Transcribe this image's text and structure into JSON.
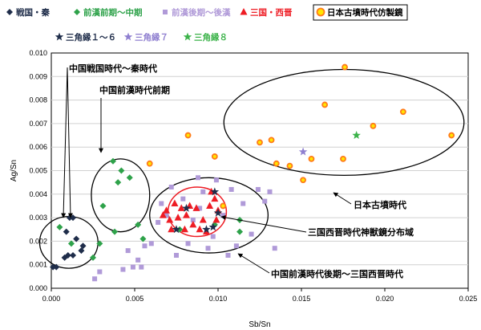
{
  "chart_data": {
    "type": "scatter",
    "xlabel": "Sb/Sn",
    "ylabel": "Ag/Sn",
    "xlim": [
      0,
      0.025
    ],
    "ylim": [
      0,
      0.01
    ],
    "x_ticks": [
      "0.000",
      "0.005",
      "0.010",
      "0.015",
      "0.020",
      "0.025"
    ],
    "y_ticks": [
      "0.000",
      "0.001",
      "0.002",
      "0.003",
      "0.004",
      "0.005",
      "0.006",
      "0.007",
      "0.008",
      "0.009",
      "0.010"
    ],
    "grid": "horizontal",
    "legend_position": "top",
    "series": [
      {
        "name": "戦国・秦",
        "marker": "diamond",
        "color": "#1f2d4a",
        "points": [
          [
            0.0001,
            0.0009
          ],
          [
            0.0003,
            0.0009
          ],
          [
            0.0008,
            0.0013
          ],
          [
            0.0009,
            0.0024
          ],
          [
            0.001,
            0.0014
          ],
          [
            0.0011,
            0.003
          ],
          [
            0.0013,
            0.003
          ],
          [
            0.0013,
            0.0014
          ],
          [
            0.0015,
            0.0021
          ],
          [
            0.0018,
            0.0016
          ],
          [
            0.0019,
            0.0018
          ]
        ]
      },
      {
        "name": "前漢前期～中期",
        "marker": "diamond",
        "color": "#2ea24a",
        "points": [
          [
            0.0005,
            0.0026
          ],
          [
            0.0012,
            0.0019
          ],
          [
            0.0025,
            0.0013
          ],
          [
            0.0029,
            0.0019
          ],
          [
            0.0031,
            0.0035
          ],
          [
            0.0037,
            0.0054
          ],
          [
            0.0038,
            0.0024
          ],
          [
            0.004,
            0.0045
          ],
          [
            0.0042,
            0.005
          ],
          [
            0.0047,
            0.0047
          ],
          [
            0.0052,
            0.0027
          ],
          [
            0.0055,
            0.0021
          ],
          [
            0.0077,
            0.0025
          ],
          [
            0.0098,
            0.0027
          ],
          [
            0.0113,
            0.0029
          ],
          [
            0.0113,
            0.0024
          ]
        ]
      },
      {
        "name": "前漢後期～後漢",
        "marker": "square",
        "color": "#b09ad8",
        "points": [
          [
            0.0026,
            0.0004
          ],
          [
            0.0029,
            0.0007
          ],
          [
            0.0043,
            0.0008
          ],
          [
            0.0046,
            0.0016
          ],
          [
            0.0049,
            0.0009
          ],
          [
            0.0052,
            0.0012
          ],
          [
            0.0054,
            0.0009
          ],
          [
            0.0056,
            0.0018
          ],
          [
            0.006,
            0.0019
          ],
          [
            0.0064,
            0.0028
          ],
          [
            0.0066,
            0.0036
          ],
          [
            0.0069,
            0.0031
          ],
          [
            0.0072,
            0.0043
          ],
          [
            0.0075,
            0.0014
          ],
          [
            0.0079,
            0.0038
          ],
          [
            0.0082,
            0.0019
          ],
          [
            0.0085,
            0.0029
          ],
          [
            0.0088,
            0.0047
          ],
          [
            0.0089,
            0.0034
          ],
          [
            0.0091,
            0.0041
          ],
          [
            0.0094,
            0.0017
          ],
          [
            0.0097,
            0.0022
          ],
          [
            0.0099,
            0.0046
          ],
          [
            0.0103,
            0.0031
          ],
          [
            0.0106,
            0.0014
          ],
          [
            0.0108,
            0.0042
          ],
          [
            0.0111,
            0.0018
          ],
          [
            0.0115,
            0.0036
          ],
          [
            0.012,
            0.0023
          ],
          [
            0.0124,
            0.0042
          ],
          [
            0.0128,
            0.0037
          ],
          [
            0.0131,
            0.0041
          ],
          [
            0.0134,
            0.0017
          ]
        ]
      },
      {
        "name": "三国・西晋",
        "marker": "triangle",
        "color": "#ee1c24",
        "points": [
          [
            0.0067,
            0.0031
          ],
          [
            0.0069,
            0.0033
          ],
          [
            0.0071,
            0.0029
          ],
          [
            0.0072,
            0.0025
          ],
          [
            0.0074,
            0.0036
          ],
          [
            0.0076,
            0.003
          ],
          [
            0.0078,
            0.0034
          ],
          [
            0.008,
            0.0025
          ],
          [
            0.0081,
            0.0031
          ],
          [
            0.0083,
            0.0035
          ],
          [
            0.0085,
            0.0027
          ],
          [
            0.0087,
            0.0034
          ],
          [
            0.0089,
            0.0025
          ],
          [
            0.0091,
            0.0029
          ],
          [
            0.0093,
            0.0024
          ],
          [
            0.0095,
            0.0035
          ],
          [
            0.0096,
            0.0041
          ],
          [
            0.0098,
            0.0038
          ],
          [
            0.0099,
            0.0029
          ],
          [
            0.01,
            0.0033
          ]
        ]
      },
      {
        "name": "日本古墳時代仿製鏡",
        "marker": "circle",
        "color": "#ff7a1a",
        "points": [
          [
            0.0059,
            0.0053
          ],
          [
            0.0082,
            0.0065
          ],
          [
            0.0098,
            0.0056
          ],
          [
            0.0103,
            0.0035
          ],
          [
            0.0125,
            0.0062
          ],
          [
            0.0132,
            0.0063
          ],
          [
            0.0135,
            0.0053
          ],
          [
            0.0143,
            0.0052
          ],
          [
            0.0151,
            0.0046
          ],
          [
            0.0156,
            0.0055
          ],
          [
            0.0164,
            0.0078
          ],
          [
            0.0175,
            0.0055
          ],
          [
            0.0176,
            0.0094
          ],
          [
            0.0193,
            0.0069
          ],
          [
            0.0211,
            0.0075
          ],
          [
            0.024,
            0.0065
          ]
        ]
      },
      {
        "name": "三角縁１～６",
        "marker": "star",
        "color": "#1f2d4a",
        "points": [
          [
            0.0075,
            0.0025
          ],
          [
            0.0081,
            0.0034
          ],
          [
            0.0093,
            0.0025
          ],
          [
            0.0097,
            0.0026
          ],
          [
            0.0098,
            0.0041
          ],
          [
            0.01,
            0.0032
          ]
        ]
      },
      {
        "name": "三角縁７",
        "marker": "star",
        "color": "#8f7fd0",
        "points": [
          [
            0.0151,
            0.0058
          ]
        ]
      },
      {
        "name": "三角縁８",
        "marker": "star",
        "color": "#3cb34a",
        "points": [
          [
            0.0183,
            0.0065
          ]
        ]
      }
    ],
    "annotations": [
      {
        "text": "中国戦国時代～秦時代"
      },
      {
        "text": "中国前漢時代前期"
      },
      {
        "text": "日本古墳時代"
      },
      {
        "text": "三国西晋時代神獣鏡分布域"
      },
      {
        "text": "中国前漢時代後期～三国西晋時代"
      }
    ]
  }
}
